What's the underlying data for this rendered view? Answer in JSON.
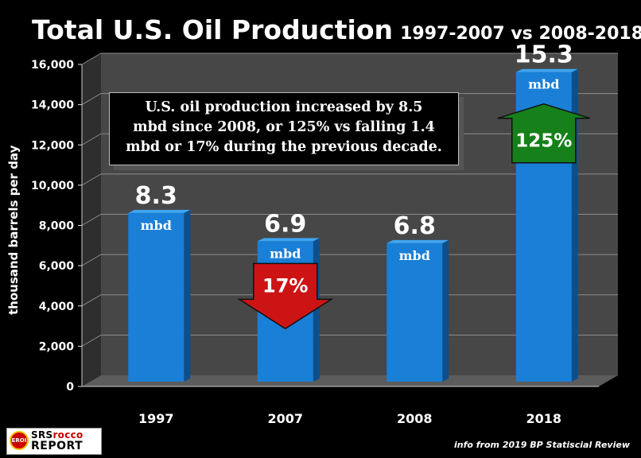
{
  "title_main": "Total U.S. Oil Production",
  "title_sub": "1997-2007 vs 2008-2018",
  "callout": [
    "U.S. oil production increased by 8.5",
    "mbd since 2008, or 125% vs falling 1.4",
    "mbd or 17% during the previous decade."
  ],
  "source": "info from 2019 BP Statiscial Review",
  "logo": {
    "badge": "EROI",
    "line1_a": "SRS",
    "line1_b": "rocco",
    "line2": "REPORT"
  },
  "colors": {
    "bar": "#1a7fd6",
    "bar_side": "#0d4f8c",
    "bar_top": "#3fa5f0",
    "plot_bg": "#474747",
    "arrow_down": "#cc1414",
    "arrow_up": "#16801a"
  },
  "chart_data": {
    "type": "bar",
    "categories": [
      "1997",
      "2007",
      "2008",
      "2018"
    ],
    "values": [
      8300,
      6900,
      6800,
      15300
    ],
    "value_labels": [
      "8.3",
      "6.9",
      "6.8",
      "15.3"
    ],
    "unit_labels": [
      "mbd",
      "mbd",
      "mbd",
      "mbd"
    ],
    "ylabel": "thousand barrels per day",
    "ylim": [
      0,
      16000
    ],
    "yticks": [
      0,
      2000,
      4000,
      6000,
      8000,
      10000,
      12000,
      14000,
      16000
    ],
    "ytick_labels": [
      "0",
      "2,000",
      "4,000",
      "6,000",
      "8,000",
      "10,000",
      "12,000",
      "14,000",
      "16,000"
    ],
    "grid": true,
    "annotations": [
      {
        "category": "2007",
        "direction": "down",
        "text": "17%"
      },
      {
        "category": "2018",
        "direction": "up",
        "text": "125%"
      }
    ]
  }
}
